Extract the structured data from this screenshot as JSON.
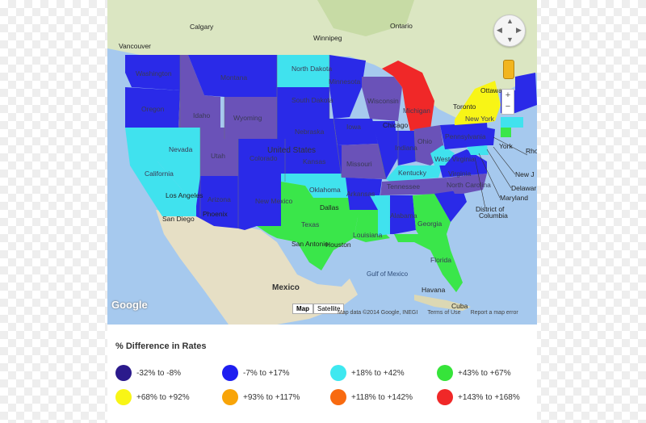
{
  "map": {
    "countries": {
      "canada": "",
      "us": "United States",
      "mexico": "Mexico"
    },
    "cities": {
      "calgary": "Calgary",
      "vancouver": "Vancouver",
      "winnipeg": "Winnipeg",
      "ontario": "Ontario",
      "ottawa": "Ottawa",
      "toronto": "Toronto",
      "chicago": "Chicago",
      "dallas": "Dallas",
      "houston": "Houston",
      "san_antonio": "San Antonio",
      "san_diego": "San Diego",
      "los_angeles": "Los Angeles",
      "phoenix": "Phoenix",
      "havana": "Havana",
      "cuba": "Cuba"
    },
    "seas": {
      "gulf_of_mexico": "Gulf of Mexico"
    },
    "states": {
      "washington": "Washington",
      "oregon": "Oregon",
      "california": "California",
      "nevada": "Nevada",
      "idaho": "Idaho",
      "montana": "Montana",
      "wyoming": "Wyoming",
      "utah": "Utah",
      "arizona": "Arizona",
      "colorado": "Colorado",
      "new_mexico": "New Mexico",
      "north_dakota": "North Dakota",
      "south_dakota": "South Dakota",
      "nebraska": "Nebraska",
      "kansas": "Kansas",
      "oklahoma": "Oklahoma",
      "texas": "Texas",
      "minnesota": "Minnesota",
      "iowa": "Iowa",
      "missouri": "Missouri",
      "arkansas": "Arkansas",
      "louisiana": "Louisiana",
      "wisconsin": "Wisconsin",
      "illinois": "Illinois",
      "michigan": "Michigan",
      "indiana": "Indiana",
      "ohio": "Ohio",
      "kentucky": "Kentucky",
      "tennessee": "Tennessee",
      "mississippi": "",
      "alabama": "Alabama",
      "georgia": "Georgia",
      "florida": "Florida",
      "south_carolina": "",
      "north_carolina": "North Carolina",
      "virginia": "Virginia",
      "west_virginia": "West Virginia",
      "pennsylvania": "Pennsylvania",
      "new_york": "New York"
    },
    "east_labels": {
      "york": "York",
      "rho": "Rho",
      "new_j": "New J",
      "delaware": "Delawar",
      "maryland": "Maryland",
      "district": "District of",
      "columbia": "Columbia"
    },
    "controls": {
      "zoom_in": "+",
      "zoom_out": "−",
      "map": "Map",
      "satellite": "Satellite"
    },
    "logo": "Google",
    "attribution": {
      "data": "Map data ©2014 Google, INEGI",
      "terms": "Terms of Use",
      "report": "Report a map error"
    }
  },
  "colors": {
    "c1": "#2b1a8c",
    "c2": "#1e1ef0",
    "c3": "#3ee8f0",
    "c4": "#36e43a",
    "c5": "#f8f516",
    "c6": "#f8a408",
    "c7": "#f86a10",
    "c8": "#f02828",
    "purple_state": "#6a52b8"
  },
  "legend": {
    "title": "% Difference in Rates",
    "items": [
      {
        "label": "-32% to -8%",
        "color": "#2b1a8c"
      },
      {
        "label": "-7% to +17%",
        "color": "#1e1ef0"
      },
      {
        "label": "+18% to +42%",
        "color": "#3ee8f0"
      },
      {
        "label": "+43% to +67%",
        "color": "#36e43a"
      },
      {
        "label": "+68% to +92%",
        "color": "#f8f516"
      },
      {
        "label": "+93% to +117%",
        "color": "#f8a408"
      },
      {
        "label": "+118% to +142%",
        "color": "#f86a10"
      },
      {
        "label": "+143% to +168%",
        "color": "#f02828"
      }
    ]
  }
}
